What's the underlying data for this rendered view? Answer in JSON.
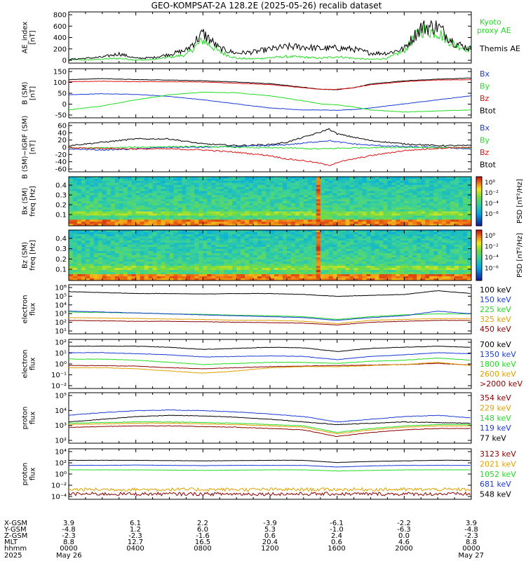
{
  "title": "GEO-KOMPSAT-2A 128.2E (2025-05-26) recalib dataset",
  "colors": {
    "black": "#000000",
    "blue": "#1a3ad6",
    "green": "#22dd22",
    "red": "#dd1111",
    "orange": "#e0a000",
    "darkred": "#8b0000"
  },
  "chart_data": [
    {
      "id": "ae",
      "type": "line",
      "ylabel": "AE_index\n[nT]",
      "yticks": [
        "800",
        "600",
        "400",
        "200",
        "0"
      ],
      "ylim": [
        0,
        850
      ],
      "series": [
        {
          "name": "Kyoto\nproxy AE",
          "color": "#22dd22"
        },
        {
          "name": "Themis AE",
          "color": "#000000"
        }
      ],
      "x_hours": [
        0,
        1,
        2,
        3,
        4,
        5,
        6,
        7,
        8,
        9,
        10,
        11,
        12,
        13,
        14,
        15,
        16,
        17,
        18,
        19,
        20,
        21,
        22,
        23,
        24
      ],
      "kyoto": [
        40,
        30,
        45,
        60,
        30,
        35,
        80,
        120,
        380,
        170,
        60,
        50,
        70,
        90,
        80,
        60,
        90,
        60,
        40,
        60,
        190,
        560,
        520,
        300,
        200
      ],
      "themis": [
        40,
        60,
        80,
        140,
        60,
        70,
        130,
        200,
        500,
        230,
        150,
        170,
        220,
        260,
        260,
        230,
        240,
        220,
        150,
        150,
        230,
        600,
        620,
        330,
        220
      ]
    },
    {
      "id": "bsm",
      "type": "line",
      "ylabel": "B (SM)\n[nT]",
      "yticks": [
        "150",
        "100",
        "50",
        "0",
        "-50"
      ],
      "ylim": [
        -65,
        150
      ],
      "series": [
        {
          "name": "Bx",
          "color": "#1a3ad6"
        },
        {
          "name": "By",
          "color": "#22dd22"
        },
        {
          "name": "Bz",
          "color": "#dd1111"
        },
        {
          "name": "Btot",
          "color": "#000000"
        }
      ],
      "x_hours": [
        0,
        2,
        4,
        6,
        8,
        10,
        12,
        14,
        15,
        16,
        17,
        18,
        20,
        22,
        24
      ],
      "bx": [
        35,
        40,
        37,
        27,
        10,
        -10,
        -30,
        -40,
        -40,
        -42,
        -38,
        -30,
        -10,
        10,
        30
      ],
      "by": [
        -40,
        -20,
        10,
        35,
        48,
        45,
        30,
        5,
        -10,
        -15,
        -25,
        -40,
        -50,
        -45,
        -40
      ],
      "bz": [
        100,
        102,
        100,
        100,
        98,
        92,
        85,
        70,
        62,
        62,
        70,
        85,
        100,
        108,
        110
      ],
      "btot": [
        110,
        115,
        110,
        108,
        104,
        98,
        90,
        72,
        62,
        60,
        70,
        88,
        104,
        112,
        118
      ]
    },
    {
      "id": "bdiff",
      "type": "line",
      "ylabel": "B (SM)−IGRF (SM)\n[nT]",
      "yticks": [
        "60",
        "40",
        "20",
        "0",
        "-20",
        "-40",
        "-60"
      ],
      "ylim": [
        -65,
        65
      ],
      "series": [
        {
          "name": "Bx",
          "color": "#1a3ad6"
        },
        {
          "name": "By",
          "color": "#22dd22"
        },
        {
          "name": "Bz",
          "color": "#dd1111"
        },
        {
          "name": "Btot",
          "color": "#000000"
        }
      ],
      "x_hours": [
        0,
        2,
        4,
        6,
        8,
        10,
        12,
        13,
        14,
        15,
        15.5,
        16,
        17,
        18,
        20,
        22,
        24
      ],
      "bx": [
        -5,
        -8,
        -5,
        0,
        0,
        2,
        5,
        8,
        12,
        18,
        20,
        16,
        10,
        6,
        2,
        0,
        -5
      ],
      "by": [
        -2,
        -2,
        0,
        2,
        2,
        0,
        -2,
        -2,
        -4,
        -5,
        -4,
        -3,
        -2,
        -1,
        0,
        -1,
        -2
      ],
      "bz": [
        -2,
        -3,
        -5,
        -5,
        -8,
        -15,
        -25,
        -35,
        -40,
        -48,
        -55,
        -45,
        -35,
        -25,
        -10,
        -3,
        0
      ],
      "btot": [
        5,
        15,
        25,
        25,
        10,
        5,
        8,
        15,
        30,
        45,
        55,
        40,
        30,
        20,
        10,
        5,
        5
      ]
    },
    {
      "id": "bx_spec",
      "type": "heatmap",
      "ylabel": "Bx (SM)\nfreq [Hz]",
      "yticks": [
        "0.4",
        "0.3",
        "0.2",
        "0.1"
      ],
      "cbar_label": "PSD [nT²/Hz]",
      "cbar_ticks": [
        "10⁰",
        "10⁻²",
        "10⁻⁴",
        "10⁻⁶"
      ]
    },
    {
      "id": "bz_spec",
      "type": "heatmap",
      "ylabel": "Bz (SM)\nfreq [Hz]",
      "yticks": [
        "0.4",
        "0.3",
        "0.2",
        "0.1"
      ],
      "cbar_label": "PSD [nT²/Hz]",
      "cbar_ticks": [
        "10⁰",
        "10⁻²",
        "10⁻⁴",
        "10⁻⁶"
      ]
    },
    {
      "id": "eflux1",
      "type": "line",
      "ylabel": "electron\nflux",
      "yticks": [
        "10⁶",
        "10⁵",
        "10⁴",
        "10³",
        "10²",
        "10¹"
      ],
      "log_range": [
        1,
        6
      ],
      "series": [
        {
          "name": "100 keV",
          "color": "#000000",
          "logv": [
            5.4,
            5.3,
            5.2,
            5.2,
            5.15,
            5.2,
            5.2,
            5.1,
            4.9,
            5.0,
            5.1,
            5.5,
            5.2
          ]
        },
        {
          "name": "150 keV",
          "color": "#1a3ad6",
          "logv": [
            3.3,
            3.2,
            3.1,
            3.0,
            2.9,
            2.8,
            2.7,
            2.6,
            2.3,
            2.6,
            2.8,
            3.3,
            3.0
          ]
        },
        {
          "name": "225 keV",
          "color": "#22dd22",
          "logv": [
            3.2,
            3.15,
            3.1,
            3.0,
            2.95,
            2.85,
            2.8,
            2.7,
            2.4,
            2.7,
            2.9,
            3.0,
            3.0
          ]
        },
        {
          "name": "325 keV",
          "color": "#e0a000",
          "logv": [
            2.6,
            2.55,
            2.5,
            2.45,
            2.4,
            2.3,
            2.3,
            2.2,
            1.95,
            2.3,
            2.4,
            2.5,
            2.5
          ]
        },
        {
          "name": "450 keV",
          "color": "#8b0000",
          "logv": [
            2.3,
            2.25,
            2.2,
            2.2,
            2.15,
            2.1,
            2.05,
            2.0,
            1.8,
            2.1,
            2.2,
            2.3,
            2.3
          ]
        }
      ]
    },
    {
      "id": "eflux2",
      "type": "line",
      "ylabel": "electron\nflux",
      "yticks": [
        "10²",
        "10¹",
        "10⁰",
        "10⁻¹",
        "10⁻²"
      ],
      "log_range": [
        -2.3,
        2
      ],
      "series": [
        {
          "name": "700 keV",
          "color": "#000000",
          "logv": [
            1.5,
            1.5,
            1.5,
            1.4,
            1.2,
            1.3,
            1.4,
            1.35,
            1.0,
            1.3,
            1.4,
            1.5,
            1.4
          ]
        },
        {
          "name": "1350 keV",
          "color": "#1a3ad6",
          "logv": [
            0.9,
            0.9,
            0.8,
            0.7,
            0.5,
            0.55,
            0.6,
            0.55,
            0.25,
            0.55,
            0.7,
            0.9,
            0.8
          ]
        },
        {
          "name": "1800 keV",
          "color": "#22dd22",
          "logv": [
            0.3,
            0.3,
            0.2,
            0.0,
            -0.2,
            -0.1,
            0.0,
            0.0,
            -0.1,
            0.1,
            0.2,
            0.4,
            0.2
          ]
        },
        {
          "name": "2600 keV",
          "color": "#e0a000",
          "logv": [
            -0.5,
            -0.5,
            -0.6,
            -0.8,
            -1.0,
            -0.8,
            -0.5,
            -0.4,
            -0.4,
            -0.3,
            -0.2,
            0.0,
            -0.3
          ]
        },
        {
          "name": ">2000 keV",
          "color": "#8b0000",
          "logv": [
            -0.3,
            -0.3,
            -0.35,
            -0.5,
            -0.6,
            -0.5,
            -0.4,
            -0.35,
            -0.3,
            -0.25,
            -0.2,
            -0.1,
            -0.25
          ]
        }
      ]
    },
    {
      "id": "pflux1",
      "type": "line",
      "ylabel": "proton\nflux",
      "yticks": [
        "10⁵",
        "10⁴",
        "10³",
        "10²"
      ],
      "log_range": [
        1.6,
        5.2
      ],
      "series": [
        {
          "name": "354 keV",
          "color": "#8b0000",
          "logv": [
            2.7,
            2.75,
            2.8,
            2.8,
            2.75,
            2.7,
            2.6,
            2.5,
            2.0,
            2.3,
            2.5,
            2.6,
            2.6
          ]
        },
        {
          "name": "229 keV",
          "color": "#e0a000",
          "logv": [
            2.9,
            2.95,
            3.0,
            3.0,
            2.95,
            2.9,
            2.8,
            2.7,
            2.2,
            2.5,
            2.7,
            2.8,
            2.8
          ]
        },
        {
          "name": "148 keV",
          "color": "#22dd22",
          "logv": [
            3.0,
            3.05,
            3.1,
            3.1,
            3.05,
            3.0,
            2.9,
            2.8,
            2.3,
            2.6,
            2.8,
            2.9,
            2.9
          ]
        },
        {
          "name": "119 keV",
          "color": "#1a3ad6",
          "logv": [
            3.6,
            3.8,
            3.95,
            4.0,
            3.95,
            3.85,
            3.7,
            3.5,
            3.1,
            3.3,
            3.5,
            3.6,
            3.4
          ]
        },
        {
          "name": "77 keV",
          "color": "#000000",
          "logv": [
            3.1,
            3.3,
            3.5,
            3.6,
            3.55,
            3.45,
            3.3,
            3.1,
            2.9,
            3.0,
            3.1,
            3.05,
            3.0
          ]
        }
      ]
    },
    {
      "id": "pflux2",
      "type": "line",
      "ylabel": "proton\nflux",
      "yticks": [
        "10⁴",
        "10²",
        "10⁰",
        "10⁻²",
        "10⁻⁴"
      ],
      "log_range": [
        -4.5,
        4
      ],
      "series": [
        {
          "name": "3123 keV",
          "color": "#8b0000",
          "logv": [
            -3.8,
            -3.8,
            -3.8,
            -3.8,
            -3.8,
            -3.8,
            -3.8,
            -3.8,
            -3.8,
            -3.8,
            -3.8,
            -3.8,
            -3.8
          ]
        },
        {
          "name": "2021 keV",
          "color": "#e0a000",
          "logv": [
            -3.0,
            -3.0,
            -3.0,
            -3.0,
            -3.0,
            -3.0,
            -3.0,
            -3.0,
            -3.0,
            -3.0,
            -3.0,
            -3.0,
            -3.0
          ]
        },
        {
          "name": "1052 keV",
          "color": "#22dd22",
          "logv": [
            0.5,
            0.5,
            0.5,
            0.45,
            0.4,
            0.45,
            0.5,
            0.5,
            0.3,
            0.4,
            0.5,
            0.5,
            0.5
          ]
        },
        {
          "name": "681 keV",
          "color": "#1a3ad6",
          "logv": [
            1.3,
            1.3,
            1.35,
            1.3,
            1.25,
            1.3,
            1.3,
            1.3,
            1.0,
            1.2,
            1.3,
            1.3,
            1.3
          ]
        },
        {
          "name": "548 keV",
          "color": "#000000",
          "logv": [
            2.2,
            2.2,
            2.2,
            2.15,
            2.1,
            2.15,
            2.2,
            2.2,
            1.8,
            2.0,
            2.1,
            2.2,
            2.2
          ]
        }
      ]
    }
  ],
  "ephemeris": {
    "row_labels": [
      "X-GSM",
      "Y-GSM",
      "Z-GSM",
      "MLT",
      "hhmm",
      "2025"
    ],
    "columns": [
      [
        "3.9",
        "-4.8",
        "-2.3",
        "8.8",
        "0000",
        "May 26"
      ],
      [
        "6.1",
        "1.2",
        "-2.3",
        "12.7",
        "0400",
        ""
      ],
      [
        "2.2",
        "6.0",
        "-1.6",
        "16.5",
        "0800",
        ""
      ],
      [
        "-3.9",
        "5.3",
        "0.6",
        "20.4",
        "1200",
        ""
      ],
      [
        "-6.1",
        "-1.0",
        "2.4",
        "0.6",
        "1600",
        ""
      ],
      [
        "-2.2",
        "-6.3",
        "0.0",
        "4.6",
        "2000",
        ""
      ],
      [
        "3.9",
        "-4.8",
        "-2.3",
        "8.8",
        "0000",
        "May 27"
      ]
    ]
  }
}
